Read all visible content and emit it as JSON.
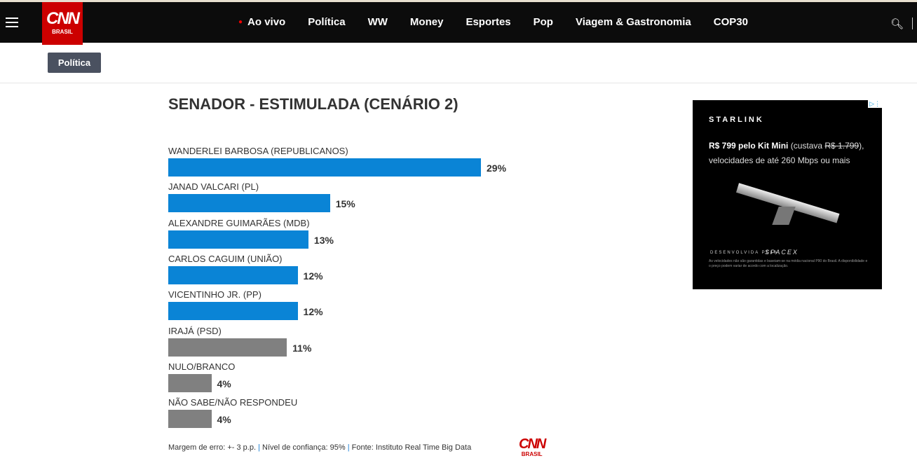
{
  "header": {
    "logo": "CNN",
    "logo_sub": "BRASIL",
    "nav": [
      "Ao vivo",
      "Política",
      "WW",
      "Money",
      "Esportes",
      "Pop",
      "Viagem & Gastronomia",
      "COP30"
    ]
  },
  "section_tag": "Política",
  "chart_data": {
    "type": "bar",
    "orientation": "horizontal",
    "title": "SENADOR - ESTIMULADA (CENÁRIO 2)",
    "categories": [
      "WANDERLEI BARBOSA (REPUBLICANOS)",
      "JANAD VALCARI (PL)",
      "ALEXANDRE GUIMARÃES (MDB)",
      "CARLOS CAGUIM (UNIÃO)",
      "VICENTINHO JR. (PP)",
      "IRAJÁ (PSD)",
      "NULO/BRANCO",
      "NÃO SABE/NÃO RESPONDEU"
    ],
    "values": [
      29,
      15,
      13,
      12,
      12,
      11,
      4,
      4
    ],
    "labels": [
      "29%",
      "15%",
      "13%",
      "12%",
      "12%",
      "11%",
      "4%",
      "4%"
    ],
    "colors": [
      "#0a84d6",
      "#0a84d6",
      "#0a84d6",
      "#0a84d6",
      "#0a84d6",
      "#808080",
      "#808080",
      "#808080"
    ],
    "xlim": [
      0,
      29
    ]
  },
  "footer": {
    "margem": "Margem de erro: +- 3 p.p.",
    "sep": "|",
    "nivel": "Nível de confiança: 95%",
    "fonte": "Fonte: Instituto Real Time Big Data",
    "logo": "CNN",
    "logo_sub": "BRASIL"
  },
  "ad": {
    "brand": "STARLINK",
    "offer_bold": "R$ 799 pelo Kit Mini",
    "offer_a": " (custava ",
    "old_price": "R$ 1.799",
    "offer_b": "), velocidades de até 260 Mbps ou mais",
    "dev": "DESENVOLVIDA PELA",
    "spacex": "SPACEX",
    "fine": "As velocidades não são garantidas e baseiam-se na média nacional P90 do Brasil. A disponibilidade e o preço podem variar de acordo com a localização."
  }
}
